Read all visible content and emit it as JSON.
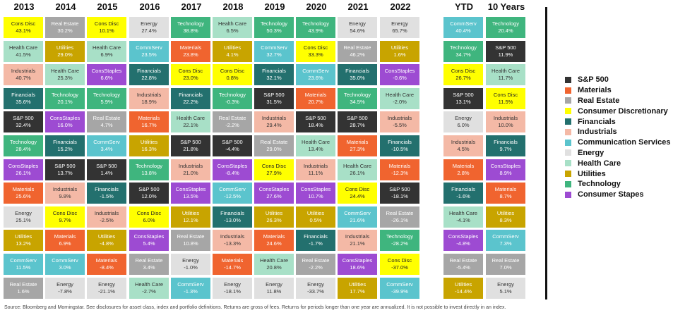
{
  "chart_data": {
    "type": "table",
    "columns": [
      "2013",
      "2014",
      "2015",
      "2016",
      "2017",
      "2018",
      "2019",
      "2020",
      "2021",
      "2022",
      "YTD",
      "10 Years"
    ],
    "rows": [
      [
        [
          "Cons Disc",
          "43.1%"
        ],
        [
          "Real Estate",
          "30.2%"
        ],
        [
          "Cons Disc",
          "10.1%"
        ],
        [
          "Energy",
          "27.4%"
        ],
        [
          "Technology",
          "38.8%"
        ],
        [
          "Health Care",
          "6.5%"
        ],
        [
          "Technology",
          "50.3%"
        ],
        [
          "Technology",
          "43.9%"
        ],
        [
          "Energy",
          "54.6%"
        ],
        [
          "Energy",
          "65.7%"
        ],
        [
          "CommServ",
          "40.4%"
        ],
        [
          "Technology",
          "20.4%"
        ]
      ],
      [
        [
          "Health Care",
          "41.5%"
        ],
        [
          "Utilities",
          "29.0%"
        ],
        [
          "Health Care",
          "6.9%"
        ],
        [
          "CommServ",
          "23.5%"
        ],
        [
          "Materials",
          "23.8%"
        ],
        [
          "Utilities",
          "4.1%"
        ],
        [
          "CommServ",
          "32.7%"
        ],
        [
          "Cons Disc",
          "33.3%"
        ],
        [
          "Real Estate",
          "46.2%"
        ],
        [
          "Utilities",
          "1.6%"
        ],
        [
          "Technology",
          "34.7%"
        ],
        [
          "S&P 500",
          "11.9%"
        ]
      ],
      [
        [
          "Industrials",
          "40.7%"
        ],
        [
          "Health Care",
          "25.3%"
        ],
        [
          "ConsStaples",
          "6.6%"
        ],
        [
          "Financials",
          "22.8%"
        ],
        [
          "Cons Disc",
          "23.0%"
        ],
        [
          "Cons Disc",
          "0.8%"
        ],
        [
          "Financials",
          "32.1%"
        ],
        [
          "CommServ",
          "23.6%"
        ],
        [
          "Financials",
          "35.0%"
        ],
        [
          "ConsStaples",
          "-0.6%"
        ],
        [
          "Cons Disc",
          "26.7%"
        ],
        [
          "Health Care",
          "11.7%"
        ]
      ],
      [
        [
          "Financials",
          "35.6%"
        ],
        [
          "Technology",
          "20.1%"
        ],
        [
          "Technology",
          "5.9%"
        ],
        [
          "Industrials",
          "18.9%"
        ],
        [
          "Financials",
          "22.2%"
        ],
        [
          "Technology",
          "-0.3%"
        ],
        [
          "S&P 500",
          "31.5%"
        ],
        [
          "Materials",
          "20.7%"
        ],
        [
          "Technology",
          "34.5%"
        ],
        [
          "Health Care",
          "-2.0%"
        ],
        [
          "S&P 500",
          "13.1%"
        ],
        [
          "Cons Disc",
          "11.5%"
        ]
      ],
      [
        [
          "S&P 500",
          "32.4%"
        ],
        [
          "ConsStaples",
          "16.0%"
        ],
        [
          "Real Estate",
          "4.7%"
        ],
        [
          "Materials",
          "16.7%"
        ],
        [
          "Health Care",
          "22.1%"
        ],
        [
          "Real Estate",
          "-2.2%"
        ],
        [
          "Industrials",
          "29.4%"
        ],
        [
          "S&P 500",
          "18.4%"
        ],
        [
          "S&P 500",
          "28.7%"
        ],
        [
          "Industrials",
          "-5.5%"
        ],
        [
          "Energy",
          "6.0%"
        ],
        [
          "Industrials",
          "10.0%"
        ]
      ],
      [
        [
          "Technology",
          "28.4%"
        ],
        [
          "Financials",
          "15.2%"
        ],
        [
          "CommServ",
          "3.4%"
        ],
        [
          "Utilities",
          "16.3%"
        ],
        [
          "S&P 500",
          "21.8%"
        ],
        [
          "S&P 500",
          "-4.4%"
        ],
        [
          "Real Estate",
          "29.0%"
        ],
        [
          "Health Care",
          "13.4%"
        ],
        [
          "Materials",
          "27.3%"
        ],
        [
          "Financials",
          "-10.5%"
        ],
        [
          "Industrials",
          "4.5%"
        ],
        [
          "Financials",
          "9.7%"
        ]
      ],
      [
        [
          "ConsStaples",
          "26.1%"
        ],
        [
          "S&P 500",
          "13.7%"
        ],
        [
          "S&P 500",
          "1.4%"
        ],
        [
          "Technology",
          "13.8%"
        ],
        [
          "Industrials",
          "21.0%"
        ],
        [
          "ConsStaples",
          "-8.4%"
        ],
        [
          "Cons Disc",
          "27.9%"
        ],
        [
          "Industrials",
          "11.1%"
        ],
        [
          "Health Care",
          "26.1%"
        ],
        [
          "Materials",
          "-12.3%"
        ],
        [
          "Materials",
          "2.8%"
        ],
        [
          "ConsStaples",
          "8.9%"
        ]
      ],
      [
        [
          "Materials",
          "25.6%"
        ],
        [
          "Industrials",
          "9.8%"
        ],
        [
          "Financials",
          "-1.5%"
        ],
        [
          "S&P 500",
          "12.0%"
        ],
        [
          "ConsStaples",
          "13.5%"
        ],
        [
          "CommServ",
          "-12.5%"
        ],
        [
          "ConsStaples",
          "27.6%"
        ],
        [
          "ConsStaples",
          "10.7%"
        ],
        [
          "Cons Disc",
          "24.4%"
        ],
        [
          "S&P 500",
          "-18.1%"
        ],
        [
          "Financials",
          "-1.6%"
        ],
        [
          "Materials",
          "8.7%"
        ]
      ],
      [
        [
          "Energy",
          "25.1%"
        ],
        [
          "Cons Disc",
          "9.7%"
        ],
        [
          "Industrials",
          "-2.5%"
        ],
        [
          "Cons Disc",
          "6.0%"
        ],
        [
          "Utilities",
          "12.1%"
        ],
        [
          "Financials",
          "-13.0%"
        ],
        [
          "Utilities",
          "26.3%"
        ],
        [
          "Utilities",
          "0.5%"
        ],
        [
          "CommServ",
          "21.6%"
        ],
        [
          "Real Estate",
          "-26.1%"
        ],
        [
          "Health Care",
          "-4.1%"
        ],
        [
          "Utilities",
          "8.3%"
        ]
      ],
      [
        [
          "Utilities",
          "13.2%"
        ],
        [
          "Materials",
          "6.9%"
        ],
        [
          "Utilities",
          "-4.8%"
        ],
        [
          "ConsStaples",
          "5.4%"
        ],
        [
          "Real Estate",
          "10.8%"
        ],
        [
          "Industrials",
          "-13.3%"
        ],
        [
          "Materials",
          "24.6%"
        ],
        [
          "Financials",
          "-1.7%"
        ],
        [
          "Industrials",
          "21.1%"
        ],
        [
          "Technology",
          "-28.2%"
        ],
        [
          "ConsStaples",
          "-4.8%"
        ],
        [
          "CommServ",
          "7.3%"
        ]
      ],
      [
        [
          "CommServ",
          "11.5%"
        ],
        [
          "CommServ",
          "3.0%"
        ],
        [
          "Materials",
          "-8.4%"
        ],
        [
          "Real Estate",
          "3.4%"
        ],
        [
          "Energy",
          "-1.0%"
        ],
        [
          "Materials",
          "-14.7%"
        ],
        [
          "Health Care",
          "20.8%"
        ],
        [
          "Real Estate",
          "-2.2%"
        ],
        [
          "ConsStaples",
          "18.6%"
        ],
        [
          "Cons Disc",
          "-37.0%"
        ],
        [
          "Real Estate",
          "-5.4%"
        ],
        [
          "Real Estate",
          "7.0%"
        ]
      ],
      [
        [
          "Real Estate",
          "1.6%"
        ],
        [
          "Energy",
          "-7.8%"
        ],
        [
          "Energy",
          "-21.1%"
        ],
        [
          "Health Care",
          "-2.7%"
        ],
        [
          "CommServ",
          "-1.3%"
        ],
        [
          "Energy",
          "-18.1%"
        ],
        [
          "Energy",
          "11.8%"
        ],
        [
          "Energy",
          "-33.7%"
        ],
        [
          "Utilities",
          "17.7%"
        ],
        [
          "CommServ",
          "-39.9%"
        ],
        [
          "Utilities",
          "-14.4%"
        ],
        [
          "Energy",
          "5.1%"
        ]
      ]
    ],
    "sector_colors": {
      "S&P 500": {
        "bg": "#333333",
        "fg": "#ffffff"
      },
      "Materials": {
        "bg": "#f0642f",
        "fg": "#ffffff"
      },
      "Real Estate": {
        "bg": "#a6a6a6",
        "fg": "#ffffff"
      },
      "Cons Disc": {
        "bg": "#ffff00",
        "fg": "#222222"
      },
      "Financials": {
        "bg": "#23706e",
        "fg": "#ffffff"
      },
      "Industrials": {
        "bg": "#f4b9a6",
        "fg": "#333333"
      },
      "CommServ": {
        "bg": "#5bc4cd",
        "fg": "#ffffff"
      },
      "Energy": {
        "bg": "#e0e0e0",
        "fg": "#333333"
      },
      "Health Care": {
        "bg": "#a8e0c7",
        "fg": "#333333"
      },
      "Utilities": {
        "bg": "#c8a400",
        "fg": "#ffffff"
      },
      "Technology": {
        "bg": "#3fb57e",
        "fg": "#ffffff"
      },
      "ConsStaples": {
        "bg": "#9d4bd2",
        "fg": "#ffffff"
      }
    }
  },
  "legend": [
    {
      "label": "S&P 500",
      "color": "#333333"
    },
    {
      "label": "Materials",
      "color": "#f0642f"
    },
    {
      "label": "Real Estate",
      "color": "#a6a6a6"
    },
    {
      "label": "Consumer Discretionary",
      "color": "#ffff00"
    },
    {
      "label": "Financials",
      "color": "#23706e"
    },
    {
      "label": "Industrials",
      "color": "#f4b9a6"
    },
    {
      "label": "Communication Services",
      "color": "#5bc4cd"
    },
    {
      "label": "Energy",
      "color": "#e0e0e0"
    },
    {
      "label": "Health Care",
      "color": "#a8e0c7"
    },
    {
      "label": "Utilities",
      "color": "#c8a400"
    },
    {
      "label": "Technology",
      "color": "#3fb57e"
    },
    {
      "label": "Consumer Stapes",
      "color": "#9d4bd2"
    }
  ],
  "footnote": "Source: Bloomberg and Morningstar. See disclosures for asset class, index and portfolio definitions. Returns are gross of fees. Returns for periods longer than one year are annualized. It is not possible to invest directly in an index."
}
